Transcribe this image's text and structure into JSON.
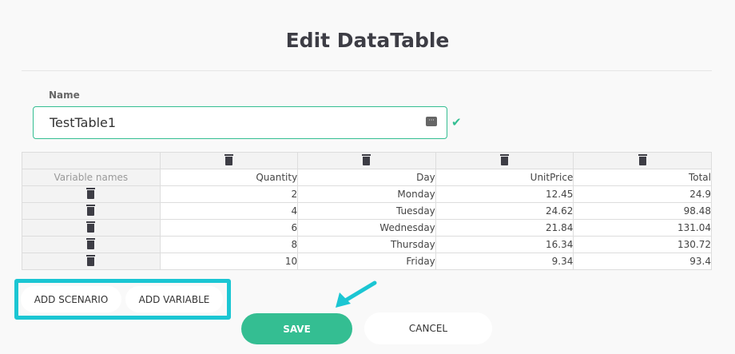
{
  "title": "Edit DataTable",
  "name_label": "Name",
  "name_value": "TestTable1",
  "accent": "#34be92",
  "highlight": "#1bc6d3",
  "table": {
    "corner": "Variable names",
    "columns": [
      "Quantity",
      "Day",
      "UnitPrice",
      "Total"
    ],
    "rows": [
      [
        "2",
        "Monday",
        "12.45",
        "24.9"
      ],
      [
        "4",
        "Tuesday",
        "24.62",
        "98.48"
      ],
      [
        "6",
        "Wednesday",
        "21.84",
        "131.04"
      ],
      [
        "8",
        "Thursday",
        "16.34",
        "130.72"
      ],
      [
        "10",
        "Friday",
        "9.34",
        "93.4"
      ]
    ]
  },
  "buttons": {
    "add_scenario": "ADD SCENARIO",
    "add_variable": "ADD VARIABLE",
    "save": "SAVE",
    "cancel": "CANCEL"
  }
}
